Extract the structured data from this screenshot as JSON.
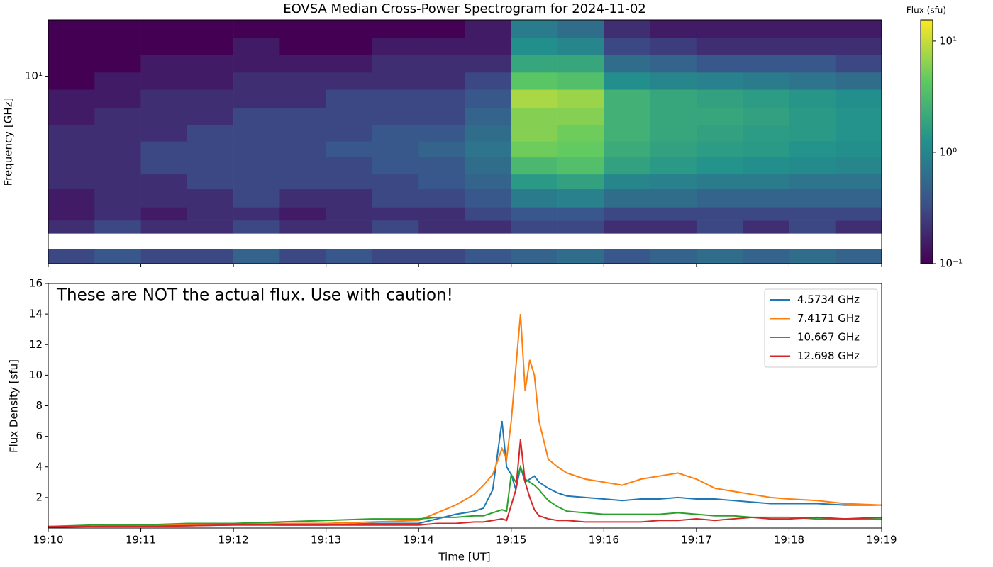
{
  "chart_data": [
    {
      "type": "heatmap",
      "title": "EOVSA Median Cross-Power Spectrogram for 2024-11-02",
      "ylabel": "Frequency [GHz]",
      "yscale": "log",
      "ylim": [
        1,
        20
      ],
      "yticks": [
        {
          "value": 10,
          "label": "10¹"
        }
      ],
      "xlim": [
        0,
        9
      ],
      "xticks": [
        0,
        1,
        2,
        3,
        4,
        5,
        6,
        7,
        8,
        9
      ],
      "x_edges": [
        0,
        0.5,
        1,
        1.5,
        2,
        2.5,
        3,
        3.5,
        4,
        4.5,
        5,
        5.5,
        6,
        6.5,
        7,
        7.5,
        8,
        8.5,
        9
      ],
      "y_edges": [
        1,
        1.2,
        1.45,
        1.7,
        2,
        2.5,
        3,
        3.7,
        4.5,
        5.5,
        6.8,
        8.5,
        10.5,
        13,
        16,
        20
      ],
      "values": [
        [
          0.3,
          0.4,
          0.3,
          0.3,
          0.5,
          0.3,
          0.4,
          0.3,
          0.3,
          0.4,
          0.5,
          0.6,
          0.4,
          0.5,
          0.6,
          0.5,
          0.6,
          0.5
        ],
        [
          null,
          null,
          null,
          null,
          null,
          null,
          null,
          null,
          null,
          null,
          null,
          null,
          null,
          null,
          null,
          null,
          null,
          null
        ],
        [
          0.2,
          0.3,
          0.2,
          0.2,
          0.3,
          0.2,
          0.2,
          0.3,
          0.2,
          0.2,
          0.3,
          0.3,
          0.2,
          0.2,
          0.3,
          0.2,
          0.3,
          0.2
        ],
        [
          0.15,
          0.2,
          0.15,
          0.2,
          0.2,
          0.15,
          0.2,
          0.2,
          0.2,
          0.3,
          0.4,
          0.4,
          0.3,
          0.3,
          0.3,
          0.3,
          0.3,
          0.3
        ],
        [
          0.15,
          0.2,
          0.2,
          0.2,
          0.3,
          0.2,
          0.2,
          0.3,
          0.3,
          0.4,
          0.8,
          0.9,
          0.6,
          0.6,
          0.5,
          0.5,
          0.5,
          0.5
        ],
        [
          0.2,
          0.2,
          0.2,
          0.3,
          0.3,
          0.3,
          0.3,
          0.3,
          0.4,
          0.5,
          1.5,
          1.8,
          1.0,
          0.9,
          0.8,
          0.8,
          0.7,
          0.7
        ],
        [
          0.2,
          0.2,
          0.3,
          0.3,
          0.3,
          0.3,
          0.3,
          0.4,
          0.4,
          0.6,
          3,
          3.5,
          1.8,
          1.5,
          1.3,
          1.2,
          1.1,
          1.0
        ],
        [
          0.2,
          0.2,
          0.3,
          0.3,
          0.3,
          0.3,
          0.4,
          0.4,
          0.5,
          0.7,
          5,
          4.5,
          2.2,
          1.8,
          1.6,
          1.5,
          1.3,
          1.2
        ],
        [
          0.2,
          0.2,
          0.2,
          0.3,
          0.3,
          0.3,
          0.3,
          0.4,
          0.4,
          0.6,
          6,
          5,
          2.5,
          2,
          1.8,
          1.6,
          1.5,
          1.3
        ],
        [
          0.15,
          0.2,
          0.2,
          0.2,
          0.3,
          0.3,
          0.3,
          0.3,
          0.3,
          0.5,
          6,
          6,
          2.5,
          2,
          2,
          1.8,
          1.5,
          1.3
        ],
        [
          0.15,
          0.15,
          0.2,
          0.2,
          0.2,
          0.2,
          0.3,
          0.3,
          0.3,
          0.4,
          8,
          7,
          2.5,
          2,
          1.8,
          1.6,
          1.4,
          1.2
        ],
        [
          0.1,
          0.15,
          0.15,
          0.15,
          0.2,
          0.2,
          0.2,
          0.2,
          0.2,
          0.3,
          4,
          3.5,
          1.2,
          1,
          0.9,
          0.8,
          0.7,
          0.6
        ],
        [
          0.1,
          0.1,
          0.15,
          0.15,
          0.15,
          0.15,
          0.15,
          0.2,
          0.2,
          0.2,
          2,
          2,
          0.6,
          0.5,
          0.4,
          0.4,
          0.4,
          0.3
        ],
        [
          0.1,
          0.1,
          0.1,
          0.1,
          0.15,
          0.1,
          0.1,
          0.15,
          0.15,
          0.15,
          1.2,
          1,
          0.3,
          0.25,
          0.2,
          0.2,
          0.2,
          0.2
        ],
        [
          0.1,
          0.1,
          0.1,
          0.1,
          0.1,
          0.1,
          0.1,
          0.1,
          0.1,
          0.15,
          0.8,
          0.6,
          0.2,
          0.15,
          0.15,
          0.15,
          0.15,
          0.15
        ]
      ],
      "colormap": "viridis",
      "colorbar": {
        "label": "Flux (sfu)",
        "scale": "log",
        "lim": [
          0.1,
          15.5
        ],
        "ticks": [
          {
            "value": 0.1,
            "label": "10⁻¹"
          },
          {
            "value": 1,
            "label": "10⁰"
          },
          {
            "value": 10,
            "label": "10¹"
          }
        ]
      }
    },
    {
      "type": "line",
      "annotation": "These are NOT the actual flux. Use with caution!",
      "xlabel": "Time [UT]",
      "ylabel": "Flux Density [sfu]",
      "xlim": [
        0,
        9
      ],
      "xticks": [
        {
          "value": 0,
          "label": "19:10"
        },
        {
          "value": 1,
          "label": "19:11"
        },
        {
          "value": 2,
          "label": "19:12"
        },
        {
          "value": 3,
          "label": "19:13"
        },
        {
          "value": 4,
          "label": "19:14"
        },
        {
          "value": 5,
          "label": "19:15"
        },
        {
          "value": 6,
          "label": "19:16"
        },
        {
          "value": 7,
          "label": "19:17"
        },
        {
          "value": 8,
          "label": "19:18"
        },
        {
          "value": 9,
          "label": "19:19"
        }
      ],
      "ylim": [
        0,
        16
      ],
      "yticks": [
        2,
        4,
        6,
        8,
        10,
        12,
        14,
        16
      ],
      "legend": "upper right",
      "x": [
        0,
        0.5,
        1,
        1.5,
        2,
        2.5,
        3,
        3.5,
        4,
        4.2,
        4.4,
        4.6,
        4.7,
        4.8,
        4.9,
        4.95,
        5.0,
        5.05,
        5.1,
        5.15,
        5.2,
        5.25,
        5.3,
        5.4,
        5.5,
        5.6,
        5.8,
        6.0,
        6.2,
        6.4,
        6.6,
        6.8,
        7.0,
        7.2,
        7.4,
        7.6,
        7.8,
        8.0,
        8.3,
        8.6,
        9.0
      ],
      "series": [
        {
          "name": "4.5734 GHz",
          "color": "#1f77b4",
          "values": [
            0.05,
            0.1,
            0.1,
            0.15,
            0.2,
            0.2,
            0.2,
            0.3,
            0.3,
            0.6,
            0.9,
            1.1,
            1.3,
            2.5,
            7.0,
            4.0,
            3.5,
            2.5,
            4.0,
            3.0,
            3.2,
            3.4,
            3.0,
            2.6,
            2.3,
            2.1,
            2.0,
            1.9,
            1.8,
            1.9,
            1.9,
            2.0,
            1.9,
            1.9,
            1.8,
            1.7,
            1.6,
            1.6,
            1.6,
            1.5,
            1.5
          ]
        },
        {
          "name": "7.4171 GHz",
          "color": "#ff7f0e",
          "values": [
            0.1,
            0.1,
            0.2,
            0.2,
            0.3,
            0.3,
            0.3,
            0.4,
            0.5,
            1,
            1.5,
            2.2,
            2.8,
            3.5,
            5.2,
            4.5,
            7,
            10.5,
            14,
            9,
            11,
            10,
            7,
            4.5,
            4,
            3.6,
            3.2,
            3,
            2.8,
            3.2,
            3.4,
            3.6,
            3.2,
            2.6,
            2.4,
            2.2,
            2.0,
            1.9,
            1.8,
            1.6,
            1.5
          ]
        },
        {
          "name": "10.667 GHz",
          "color": "#2ca02c",
          "values": [
            0.1,
            0.2,
            0.2,
            0.3,
            0.3,
            0.4,
            0.5,
            0.6,
            0.6,
            0.7,
            0.7,
            0.8,
            0.8,
            1.0,
            1.2,
            1.1,
            3.5,
            3.0,
            4.0,
            3.2,
            3.0,
            2.8,
            2.5,
            1.8,
            1.4,
            1.1,
            1.0,
            0.9,
            0.9,
            0.9,
            0.9,
            1.0,
            0.9,
            0.8,
            0.8,
            0.7,
            0.7,
            0.7,
            0.6,
            0.6,
            0.6
          ]
        },
        {
          "name": "12.698 GHz",
          "color": "#d62728",
          "values": [
            0.1,
            0.1,
            0.1,
            0.15,
            0.2,
            0.2,
            0.2,
            0.2,
            0.2,
            0.3,
            0.3,
            0.4,
            0.4,
            0.5,
            0.6,
            0.5,
            1.5,
            2.5,
            5.8,
            3.0,
            2.0,
            1.2,
            0.8,
            0.6,
            0.5,
            0.5,
            0.4,
            0.4,
            0.4,
            0.4,
            0.5,
            0.5,
            0.6,
            0.5,
            0.6,
            0.7,
            0.6,
            0.6,
            0.7,
            0.6,
            0.7
          ]
        }
      ]
    }
  ]
}
